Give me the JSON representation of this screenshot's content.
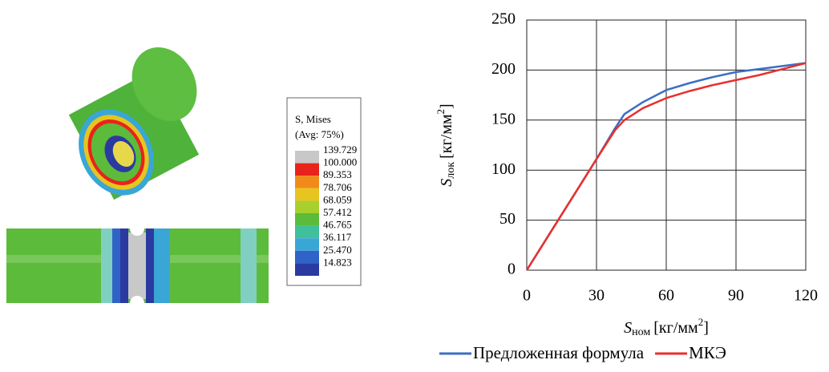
{
  "fem_legend": {
    "title": "S, Mises",
    "subtitle": "(Avg: 75%)",
    "labels": [
      "139.729",
      "100.000",
      "89.353",
      "78.706",
      "68.059",
      "57.412",
      "46.765",
      "36.117",
      "25.470",
      "14.823"
    ],
    "colors": [
      "#c8c8c8",
      "#e8231c",
      "#f28a1a",
      "#e6c51f",
      "#a9cf2c",
      "#5cbb3a",
      "#3fbf9b",
      "#3aa6d6",
      "#2f63c8",
      "#2b3aa0"
    ]
  },
  "chart_data": {
    "type": "line",
    "x_label": {
      "symbol": "S",
      "subscript": "ном",
      "unit": "[кг/мм",
      "superscript": "2",
      "unit_end": "]"
    },
    "y_label": {
      "symbol": "S",
      "subscript": "лок",
      "unit": "[кг/мм",
      "superscript": "2",
      "unit_end": "]"
    },
    "x": [
      0,
      10,
      20,
      30,
      38,
      42,
      50,
      60,
      70,
      80,
      90,
      100,
      110,
      120
    ],
    "series": [
      {
        "name": "Предложенная формула",
        "color": "#3b6fc4",
        "values": [
          0,
          37,
          74,
          111,
          142,
          156,
          168,
          180,
          187,
          193,
          198,
          201,
          204,
          207
        ]
      },
      {
        "name": "МКЭ",
        "color": "#e8302e",
        "values": [
          0,
          37,
          74,
          111,
          140,
          150,
          162,
          172,
          179,
          185,
          190,
          195,
          201,
          207
        ]
      }
    ],
    "xlim": [
      0,
      120
    ],
    "xticks": [
      0,
      30,
      60,
      90,
      120
    ],
    "ylim": [
      0,
      250
    ],
    "yticks": [
      0,
      50,
      100,
      150,
      200,
      250
    ],
    "grid": true
  }
}
